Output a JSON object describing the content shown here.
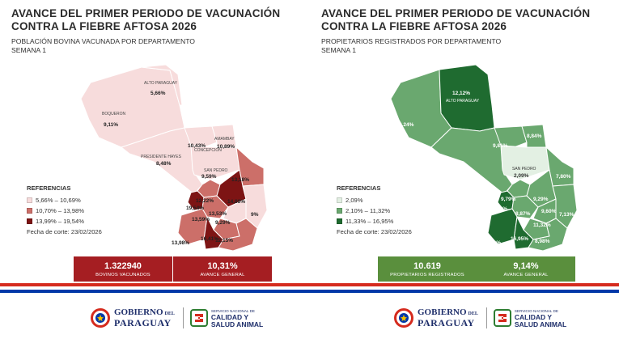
{
  "left": {
    "title": "AVANCE DEL PRIMER PERIODO DE VACUNACIÓN CONTRA LA FIEBRE AFTOSA 2026",
    "subtitle_line1": "POBLACIÓN BOVINA VACUNADA POR DEPARTAMENTO",
    "subtitle_line2": "SEMANA 1",
    "map_labels": {
      "alto_paraguay_name": "ALTO PARAGUAY",
      "alto_paraguay_value": "5,66%",
      "boqueron_name": "BOQUERON",
      "boqueron_value": "9,11%",
      "presidente_hayes_name": "PRESIDENTE HAYES",
      "presidente_hayes_value": "8,48%",
      "concepcion_name": "CONCEPCION",
      "concepcion_value": "10,43%",
      "amambay_name": "AMAMBAY",
      "amambay_value": "10,89%",
      "san_pedro_name": "SAN PEDRO",
      "san_pedro_value": "9,59%",
      "canindeyu_value": "13,18%",
      "cordillera_value": "12,22%",
      "caaguazu_value": "14,88%",
      "central_value": "19,54%",
      "paraguari_value": "13,53%",
      "alto_parana_value": "9%",
      "guaira_value": "9,29%",
      "caazapa_value": "13,59%",
      "neembucu_value": "13,98%",
      "misiones_value": "16,41%",
      "itapua_value": "12,15%"
    },
    "legend_title": "REFERENCIAS",
    "legend": [
      "5,66% – 10,69%",
      "10,70% – 13,98%",
      "13,99% – 19,54%"
    ],
    "legend_colors": [
      "#f7dcdc",
      "#cc6f69",
      "#7d1414"
    ],
    "cutoff": "Fecha de corte: 23/02/2026",
    "stat1_value": "1.322940",
    "stat1_label": "BOVINOS VACUNADOS",
    "stat2_value": "10,31%",
    "stat2_label": "AVANCE GENERAL",
    "box_color": "#a51e22"
  },
  "right": {
    "title": "AVANCE DEL PRIMER PERIODO DE VACUNACIÓN CONTRA LA FIEBRE AFTOSA 2026",
    "subtitle_line1": "PROPIETARIOS REGISTRADOS POR DEPARTAMENTO",
    "subtitle_line2": "SEMANA 1",
    "map_labels": {
      "alto_paraguay_value": "12,12%",
      "alto_paraguay_name": "ALTO PARAGUAY",
      "boqueron_value": "9,24%",
      "presidente_hayes_value": "9,90%",
      "concepcion_value": "9,81%",
      "amambay_value": "8,84%",
      "san_pedro_name": "SAN PEDRO",
      "san_pedro_value": "2,09%",
      "canindeyu_value": "7,80%",
      "cordillera_value": "9,79%",
      "caaguazu_value": "9,29%",
      "central_value": "13,69%",
      "paraguari_value": "8,87%",
      "alto_parana_value": "7,13%",
      "guaira_value": "9,60%",
      "caazapa_value": "11,32%",
      "neembucu_value": "14,90%",
      "misiones_value": "16,95%",
      "itapua_value": "8,98%"
    },
    "legend_title": "REFERENCIAS",
    "legend": [
      "2,09%",
      "2,10% – 11,32%",
      "11,33% – 16,95%"
    ],
    "legend_colors": [
      "#e3f0e3",
      "#6aa86f",
      "#1f6b30"
    ],
    "cutoff": "Fecha de corte: 23/02/2026",
    "stat1_value": "10.619",
    "stat1_label": "PROPIETARIOS REGISTRADOS",
    "stat2_value": "9,14%",
    "stat2_label": "AVANCE GENERAL",
    "box_color": "#5a8f3d"
  },
  "footer": {
    "gob_line1_a": "GOBIERNO",
    "gob_line1_b": "DEL",
    "gob_line2": "PARAGUAY",
    "senacsa_small": "SERVICIO NACIONAL DE",
    "senacsa_line1": "CALIDAD Y",
    "senacsa_line2": "SALUD ANIMAL"
  },
  "colors": {
    "flag_red": "#d52b1e",
    "flag_blue": "#0038a8"
  }
}
